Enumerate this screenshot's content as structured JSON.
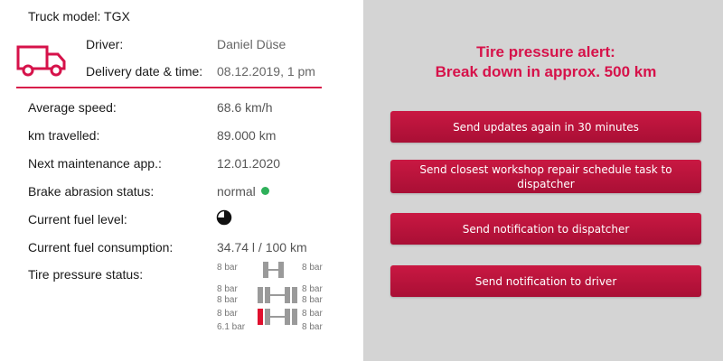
{
  "truck": {
    "model_text": "Truck model: TGX"
  },
  "header": {
    "driver_label": "Driver:",
    "driver_value": "Daniel Düse",
    "delivery_label": "Delivery date & time:",
    "delivery_value": "08.12.2019, 1 pm"
  },
  "stats": [
    {
      "label": "Average speed:",
      "value": "68.6 km/h"
    },
    {
      "label": "km travelled:",
      "value": "89.000 km"
    },
    {
      "label": "Next maintenance app.:",
      "value": "12.01.2020"
    },
    {
      "label": "Brake abrasion status:",
      "value": "normal"
    },
    {
      "label": "Current fuel level:",
      "value": ""
    },
    {
      "label": "Current fuel consumption:",
      "value": "34.74 l / 100 km"
    },
    {
      "label": "Tire pressure status:",
      "value": ""
    }
  ],
  "brake_status_color": "#2fb05a",
  "fuel_level_fraction": 0.75,
  "tires": {
    "left": [
      "8 bar",
      "8 bar",
      "8 bar",
      "8 bar",
      "6.1 bar"
    ],
    "right": [
      "8 bar",
      "8 bar",
      "8 bar",
      "8 bar",
      "8 bar"
    ],
    "alert_color": "#e0102e"
  },
  "alert": {
    "line1": "Tire pressure alert:",
    "line2": "Break down  in approx. 500 km"
  },
  "actions": [
    "Send updates again in 30 minutes",
    "Send closest workshop repair schedule task to dispatcher",
    "Send notification to dispatcher",
    "Send notification to driver"
  ],
  "colors": {
    "accent": "#d6124a",
    "button": "#b8123c",
    "panel": "#d4d4d4"
  }
}
